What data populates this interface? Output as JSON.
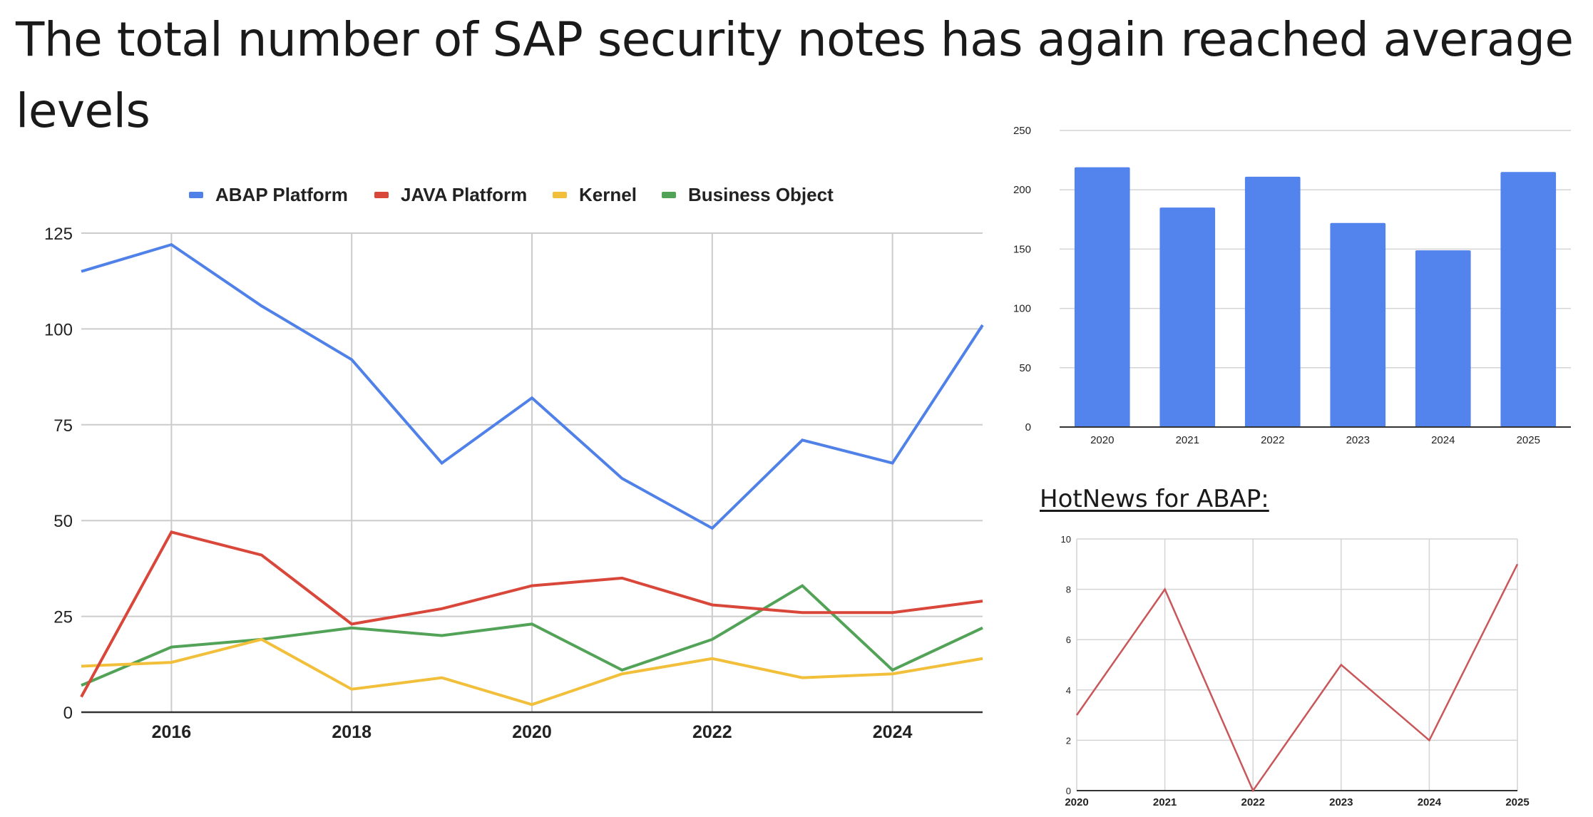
{
  "page": {
    "title": "The total number of SAP security notes has again reached average levels"
  },
  "chart_data": [
    {
      "id": "notes_by_platform",
      "type": "line",
      "title": "",
      "xlabel": "",
      "ylabel": "",
      "x": [
        2015,
        2016,
        2017,
        2018,
        2019,
        2020,
        2021,
        2022,
        2023,
        2024,
        2025
      ],
      "xticks": [
        "2016",
        "2018",
        "2020",
        "2022",
        "2024"
      ],
      "xtick_values": [
        2016,
        2018,
        2020,
        2022,
        2024
      ],
      "yticks": [
        "0",
        "25",
        "50",
        "75",
        "100",
        "125"
      ],
      "ytick_values": [
        0,
        25,
        50,
        75,
        100,
        125
      ],
      "ylim": [
        0,
        125
      ],
      "xlim": [
        2015,
        2025
      ],
      "grid": true,
      "legend_position": "top",
      "series": [
        {
          "name": "ABAP Platform",
          "color": "#4f81e8",
          "values": [
            115,
            122,
            106,
            92,
            65,
            82,
            61,
            48,
            71,
            65,
            101
          ]
        },
        {
          "name": "JAVA Platform",
          "color": "#d9473b",
          "values": [
            4,
            47,
            41,
            23,
            27,
            33,
            35,
            28,
            26,
            26,
            29
          ]
        },
        {
          "name": "Kernel",
          "color": "#f2bf3a",
          "values": [
            12,
            13,
            19,
            6,
            9,
            2,
            10,
            14,
            9,
            10,
            14
          ]
        },
        {
          "name": "Business Object",
          "color": "#52a357",
          "values": [
            7,
            17,
            19,
            22,
            20,
            23,
            11,
            19,
            33,
            11,
            22
          ]
        }
      ]
    },
    {
      "id": "total_notes_per_year",
      "type": "bar",
      "title": "",
      "xlabel": "",
      "ylabel": "",
      "categories": [
        "2020",
        "2021",
        "2022",
        "2023",
        "2024",
        "2025"
      ],
      "values": [
        219,
        185,
        211,
        172,
        149,
        215
      ],
      "color": "#5383ec",
      "yticks": [
        "0",
        "50",
        "100",
        "150",
        "200",
        "250"
      ],
      "ytick_values": [
        0,
        50,
        100,
        150,
        200,
        250
      ],
      "ylim": [
        0,
        250
      ],
      "grid": true
    },
    {
      "id": "hotnews_abap",
      "type": "line",
      "title": "HotNews for ABAP:",
      "xlabel": "",
      "ylabel": "",
      "x": [
        "2020",
        "2021",
        "2022",
        "2023",
        "2024",
        "2025"
      ],
      "values": [
        3,
        8,
        0,
        5,
        2,
        9
      ],
      "color": "#c9575a",
      "yticks": [
        "0",
        "2",
        "4",
        "6",
        "8",
        "10"
      ],
      "ytick_values": [
        0,
        2,
        4,
        6,
        8,
        10
      ],
      "ylim": [
        0,
        10
      ],
      "grid": true
    }
  ]
}
